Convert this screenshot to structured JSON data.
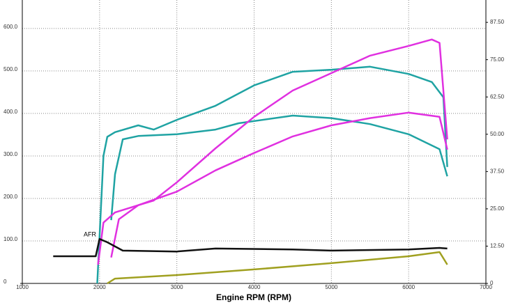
{
  "chart_data": {
    "type": "line",
    "x_label": "Engine RPM (RPM)",
    "annotation": "AFR",
    "xlim": [
      1000,
      7000
    ],
    "xticks": [
      1000,
      2000,
      3000,
      4000,
      5000,
      6000,
      7000
    ],
    "ylim": [
      0,
      667
    ],
    "yticks": [
      0,
      {
        "value": 100,
        "label": "100.0"
      },
      {
        "value": 200,
        "label": "200.0"
      },
      {
        "value": 300,
        "label": "300.0"
      },
      {
        "value": 400,
        "label": "400.0"
      },
      {
        "value": 500,
        "label": "500.0"
      },
      {
        "value": 600,
        "label": "600.0"
      }
    ],
    "y2lim": [
      0,
      95
    ],
    "y2ticks": [
      0,
      {
        "value": 12.5,
        "label": "12.50"
      },
      {
        "value": 25,
        "label": "25.00"
      },
      {
        "value": 37.5,
        "label": "37.50"
      },
      {
        "value": 50,
        "label": "50.00"
      },
      {
        "value": 62.5,
        "label": "62.50"
      },
      {
        "value": 75,
        "label": "75.00"
      },
      {
        "value": 87.5,
        "label": "87.50"
      }
    ],
    "grid": true,
    "series": [
      {
        "color": "#1fa3a3",
        "x": [
          1970,
          2000,
          2050,
          2100,
          2200,
          2500,
          2700,
          3000,
          3500,
          4000,
          4500,
          5000,
          5500,
          6000,
          6300,
          6450,
          6500
        ],
        "values": [
          0,
          110,
          300,
          345,
          356,
          372,
          362,
          385,
          418,
          466,
          498,
          503,
          510,
          493,
          474,
          438,
          274
        ]
      },
      {
        "color": "#1fa3a3",
        "x": [
          2150,
          2200,
          2300,
          2500,
          3000,
          3500,
          3800,
          4500,
          5000,
          5500,
          6000,
          6400,
          6500
        ],
        "values": [
          149,
          257,
          339,
          347,
          351,
          362,
          377,
          395,
          389,
          375,
          351,
          316,
          252
        ]
      },
      {
        "color": "#e030e0",
        "x": [
          1980,
          2050,
          2200,
          2500,
          2700,
          3000,
          3500,
          4000,
          4500,
          5000,
          5500,
          6000,
          6300,
          6400,
          6500
        ],
        "values": [
          44,
          143,
          167,
          184,
          195,
          238,
          318,
          392,
          454,
          495,
          536,
          559,
          574,
          566,
          339
        ]
      },
      {
        "color": "#e030e0",
        "x": [
          2150,
          2250,
          2500,
          3000,
          3500,
          4000,
          4500,
          5000,
          5500,
          6000,
          6400,
          6500
        ],
        "values": [
          61,
          151,
          184,
          216,
          266,
          307,
          346,
          372,
          389,
          402,
          392,
          315
        ]
      },
      {
        "color": "#111111",
        "axis": "y2",
        "x": [
          1400,
          1950,
          2000,
          2100,
          2300,
          3000,
          3500,
          4500,
          5000,
          6000,
          6400,
          6500
        ],
        "values": [
          9.1,
          9.1,
          14.9,
          13.8,
          11.0,
          10.7,
          11.7,
          11.4,
          11.0,
          11.4,
          11.9,
          11.7
        ]
      },
      {
        "color": "#a0a020",
        "axis": "y2",
        "x": [
          2100,
          2200,
          3000,
          4000,
          5000,
          6000,
          6400,
          6500
        ],
        "values": [
          0,
          1.6,
          2.8,
          4.7,
          6.8,
          9.1,
          10.5,
          6.3
        ]
      }
    ]
  }
}
